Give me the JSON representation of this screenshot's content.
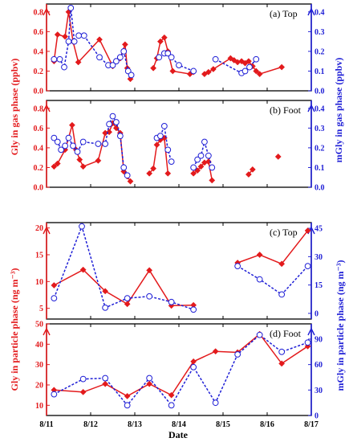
{
  "colors": {
    "gly": "#e31a1c",
    "mgly": "#1f1fd6",
    "frame": "#000000"
  },
  "x_axis": {
    "title": "Date",
    "ticks": [
      {
        "value": 0,
        "label": "8/11"
      },
      {
        "value": 1,
        "label": "8/12"
      },
      {
        "value": 2,
        "label": "8/13"
      },
      {
        "value": 3,
        "label": "8/14"
      },
      {
        "value": 4,
        "label": "8/15"
      },
      {
        "value": 5,
        "label": "8/16"
      },
      {
        "value": 6,
        "label": "8/17"
      }
    ]
  },
  "shared_axis_titles": {
    "gas_left": "Gly in gas phase (ppbv)",
    "gas_right": "mGly in gas phase (ppbv)",
    "particle_left": "Gly in particle phase (ng m⁻³)",
    "particle_right": "mGly in particle phase (ng m⁻³)"
  },
  "chart_data": [
    {
      "type": "line",
      "panel_label": "(a) Top",
      "xlim": [
        0,
        6
      ],
      "left_ylim": [
        0,
        0.88
      ],
      "left_ticks": [
        0.0,
        0.2,
        0.4,
        0.6,
        0.8
      ],
      "right_ylim": [
        0,
        0.44
      ],
      "right_ticks": [
        0.0,
        0.1,
        0.2,
        0.3,
        0.4
      ],
      "series": [
        {
          "axis": "left",
          "segments": [
            [
              [
                0.17,
                0.3
              ],
              [
                0.25,
                0.57
              ],
              [
                0.42,
                0.55
              ],
              [
                0.5,
                0.8
              ],
              [
                0.6,
                0.5
              ],
              [
                0.72,
                0.29
              ],
              [
                1.2,
                0.52
              ],
              [
                1.5,
                0.25
              ],
              [
                1.67,
                0.33
              ],
              [
                1.78,
                0.47
              ],
              [
                1.83,
                0.23
              ],
              [
                1.9,
                0.12
              ]
            ],
            [
              [
                2.42,
                0.23
              ],
              [
                2.5,
                0.33
              ],
              [
                2.58,
                0.5
              ],
              [
                2.67,
                0.54
              ],
              [
                2.75,
                0.4
              ],
              [
                2.86,
                0.2
              ],
              [
                3.25,
                0.17
              ],
              [
                3.33,
                0.19
              ]
            ],
            [
              [
                3.58,
                0.17
              ],
              [
                3.67,
                0.19
              ],
              [
                3.78,
                0.22
              ],
              [
                4.17,
                0.33
              ],
              [
                4.25,
                0.31
              ],
              [
                4.33,
                0.29
              ],
              [
                4.42,
                0.3
              ],
              [
                4.5,
                0.28
              ],
              [
                4.58,
                0.3
              ],
              [
                4.67,
                0.25
              ],
              [
                4.75,
                0.2
              ],
              [
                4.83,
                0.17
              ],
              [
                5.33,
                0.24
              ]
            ]
          ]
        },
        {
          "axis": "right",
          "segments": [
            [
              [
                0.17,
                0.16
              ],
              [
                0.3,
                0.16
              ],
              [
                0.4,
                0.12
              ],
              [
                0.5,
                0.25
              ],
              [
                0.55,
                0.42
              ],
              [
                0.63,
                0.25
              ],
              [
                0.73,
                0.28
              ],
              [
                0.85,
                0.28
              ],
              [
                1.2,
                0.17
              ],
              [
                1.4,
                0.13
              ],
              [
                1.5,
                0.13
              ],
              [
                1.58,
                0.15
              ],
              [
                1.67,
                0.17
              ],
              [
                1.75,
                0.2
              ],
              [
                1.85,
                0.1
              ],
              [
                1.92,
                0.08
              ]
            ],
            [
              [
                2.55,
                0.17
              ],
              [
                2.67,
                0.19
              ],
              [
                2.75,
                0.19
              ],
              [
                2.83,
                0.17
              ],
              [
                3.0,
                0.13
              ],
              [
                3.33,
                0.1
              ]
            ],
            [
              [
                3.83,
                0.16
              ],
              [
                4.42,
                0.09
              ],
              [
                4.5,
                0.1
              ],
              [
                4.6,
                0.12
              ],
              [
                4.75,
                0.16
              ]
            ]
          ]
        }
      ]
    },
    {
      "type": "line",
      "panel_label": "(b) Foot",
      "xlim": [
        0,
        6
      ],
      "left_ylim": [
        0,
        0.88
      ],
      "left_ticks": [
        0.0,
        0.2,
        0.4,
        0.6,
        0.8
      ],
      "right_ylim": [
        0,
        0.44
      ],
      "right_ticks": [
        0.0,
        0.1,
        0.2,
        0.3,
        0.4
      ],
      "series": [
        {
          "axis": "left",
          "segments": [
            [
              [
                0.17,
                0.21
              ],
              [
                0.25,
                0.24
              ],
              [
                0.42,
                0.38
              ],
              [
                0.5,
                0.5
              ],
              [
                0.58,
                0.63
              ],
              [
                0.67,
                0.38
              ],
              [
                0.75,
                0.28
              ],
              [
                0.83,
                0.21
              ],
              [
                1.17,
                0.27
              ],
              [
                1.33,
                0.55
              ],
              [
                1.42,
                0.56
              ],
              [
                1.5,
                0.65
              ],
              [
                1.58,
                0.6
              ],
              [
                1.67,
                0.55
              ],
              [
                1.75,
                0.16
              ],
              [
                1.83,
                0.11
              ],
              [
                1.9,
                0.06
              ]
            ],
            [
              [
                2.33,
                0.14
              ],
              [
                2.42,
                0.19
              ],
              [
                2.5,
                0.43
              ],
              [
                2.58,
                0.48
              ],
              [
                2.67,
                0.5
              ],
              [
                2.75,
                0.14
              ]
            ],
            [
              [
                3.33,
                0.14
              ],
              [
                3.42,
                0.17
              ],
              [
                3.5,
                0.21
              ],
              [
                3.58,
                0.25
              ],
              [
                3.67,
                0.26
              ],
              [
                3.75,
                0.07
              ]
            ],
            [
              [
                4.58,
                0.13
              ],
              [
                4.67,
                0.18
              ]
            ],
            [
              [
                5.25,
                0.31
              ]
            ]
          ]
        },
        {
          "axis": "right",
          "segments": [
            [
              [
                0.17,
                0.25
              ],
              [
                0.25,
                0.23
              ],
              [
                0.33,
                0.19
              ],
              [
                0.42,
                0.21
              ],
              [
                0.5,
                0.25
              ],
              [
                0.6,
                0.21
              ],
              [
                0.7,
                0.18
              ],
              [
                0.83,
                0.23
              ],
              [
                1.17,
                0.22
              ],
              [
                1.33,
                0.22
              ],
              [
                1.42,
                0.32
              ],
              [
                1.5,
                0.36
              ],
              [
                1.58,
                0.33
              ],
              [
                1.67,
                0.26
              ],
              [
                1.75,
                0.1
              ],
              [
                1.83,
                0.06
              ]
            ],
            [
              [
                2.5,
                0.25
              ],
              [
                2.58,
                0.26
              ],
              [
                2.67,
                0.31
              ],
              [
                2.75,
                0.19
              ],
              [
                2.83,
                0.13
              ]
            ],
            [
              [
                3.33,
                0.1
              ],
              [
                3.42,
                0.14
              ],
              [
                3.5,
                0.16
              ],
              [
                3.58,
                0.23
              ],
              [
                3.67,
                0.16
              ],
              [
                3.75,
                0.1
              ]
            ]
          ]
        }
      ]
    },
    {
      "type": "line",
      "panel_label": "(c) Top",
      "xlim": [
        0,
        6
      ],
      "left_ylim": [
        3,
        21
      ],
      "left_ticks": [
        5,
        10,
        15,
        20
      ],
      "right_ylim": [
        -3,
        48
      ],
      "right_ticks": [
        0,
        15,
        30,
        45
      ],
      "series": [
        {
          "axis": "left",
          "segments": [
            [
              [
                0.17,
                9.3
              ],
              [
                0.83,
                12.2
              ],
              [
                1.33,
                8.2
              ],
              [
                1.83,
                5.8
              ],
              [
                2.33,
                12.1
              ],
              [
                2.83,
                5.5
              ],
              [
                3.33,
                5.6
              ]
            ],
            [
              [
                4.33,
                13.5
              ],
              [
                4.83,
                15.0
              ],
              [
                5.33,
                13.3
              ],
              [
                5.92,
                19.5
              ]
            ]
          ]
        },
        {
          "axis": "right",
          "segments": [
            [
              [
                0.17,
                8
              ],
              [
                0.8,
                46
              ],
              [
                1.33,
                3
              ],
              [
                1.83,
                8
              ],
              [
                2.33,
                9
              ],
              [
                2.83,
                6
              ],
              [
                3.33,
                2
              ]
            ],
            [
              [
                4.33,
                25
              ],
              [
                4.83,
                18
              ],
              [
                5.33,
                10
              ],
              [
                5.92,
                25
              ]
            ]
          ]
        }
      ]
    },
    {
      "type": "line",
      "panel_label": "(d) Foot",
      "xlim": [
        0,
        6
      ],
      "left_ylim": [
        5,
        50
      ],
      "left_ticks": [
        10,
        20,
        30,
        40,
        50
      ],
      "right_ylim": [
        0,
        108
      ],
      "right_ticks": [
        0,
        30,
        60,
        90
      ],
      "series": [
        {
          "axis": "left",
          "segments": [
            [
              [
                0.17,
                17.5
              ],
              [
                0.83,
                16.5
              ],
              [
                1.33,
                20.5
              ],
              [
                1.83,
                14.5
              ],
              [
                2.33,
                20.5
              ],
              [
                2.83,
                15
              ],
              [
                3.33,
                31.5
              ],
              [
                3.83,
                36.5
              ],
              [
                4.33,
                36
              ],
              [
                4.83,
                45
              ],
              [
                5.33,
                30.5
              ],
              [
                5.92,
                39
              ]
            ]
          ]
        },
        {
          "axis": "right",
          "segments": [
            [
              [
                0.17,
                25
              ],
              [
                0.83,
                43
              ],
              [
                1.33,
                44
              ],
              [
                1.83,
                12
              ],
              [
                2.33,
                44
              ],
              [
                2.83,
                12
              ],
              [
                3.33,
                57
              ],
              [
                3.83,
                15
              ],
              [
                4.33,
                72
              ],
              [
                4.83,
                95
              ],
              [
                5.33,
                75
              ],
              [
                5.92,
                86
              ]
            ]
          ]
        }
      ]
    }
  ]
}
